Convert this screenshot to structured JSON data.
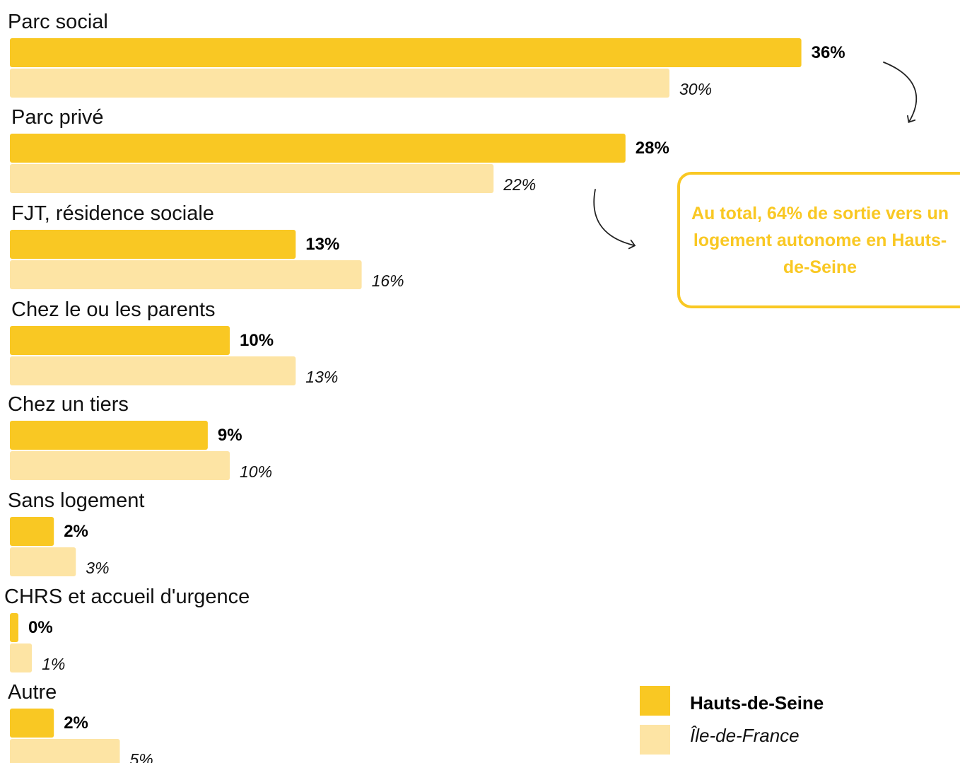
{
  "colors": {
    "hauts_de_seine": "#f9c823",
    "ile_de_france": "#fde4a4",
    "callout": "#f9c823"
  },
  "chart_data": {
    "type": "bar",
    "orientation": "horizontal",
    "categories": [
      "Parc social",
      "Parc privé",
      "FJT, résidence sociale",
      "Chez le ou les parents",
      "Chez un tiers",
      "Sans logement",
      "CHRS et accueil d'urgence",
      "Autre"
    ],
    "series": [
      {
        "name": "Hauts-de-Seine",
        "values": [
          36,
          28,
          13,
          10,
          9,
          2,
          0,
          2
        ],
        "labels": [
          "36%",
          "28%",
          "13%",
          "10%",
          "9%",
          "2%",
          "0%",
          "2%"
        ]
      },
      {
        "name": "Île-de-France",
        "values": [
          30,
          22,
          16,
          13,
          10,
          3,
          1,
          5
        ],
        "labels": [
          "30%",
          "22%",
          "16%",
          "13%",
          "10%",
          "3%",
          "1%",
          "5%"
        ]
      }
    ],
    "legend_position": "bottom-right",
    "grid": false,
    "annotation": "Au total, 64% de sortie vers un logement autonome en Hauts-de-Seine"
  }
}
